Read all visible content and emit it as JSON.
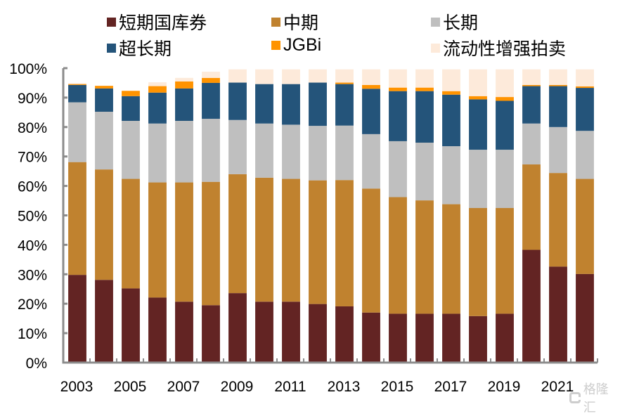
{
  "chart_data": {
    "type": "bar",
    "stacked": true,
    "title": "",
    "xlabel": "",
    "ylabel": "",
    "ylim": [
      0,
      100
    ],
    "y_ticks": [
      "0%",
      "10%",
      "20%",
      "30%",
      "40%",
      "50%",
      "60%",
      "70%",
      "80%",
      "90%",
      "100%"
    ],
    "x_tick_labels": [
      "2003",
      "2005",
      "2007",
      "2009",
      "2011",
      "2013",
      "2015",
      "2017",
      "2019",
      "2021"
    ],
    "categories": [
      "2003",
      "2004",
      "2005",
      "2006",
      "2007",
      "2008",
      "2009",
      "2010",
      "2011",
      "2012",
      "2013",
      "2014",
      "2015",
      "2016",
      "2017",
      "2018",
      "2019",
      "2020",
      "2021",
      "2022"
    ],
    "legend_position": "top",
    "grid": false,
    "series": [
      {
        "name": "短期国库券",
        "color": "#632423",
        "values": [
          29.8,
          28.1,
          25.2,
          22.1,
          20.7,
          19.5,
          23.6,
          20.7,
          20.7,
          19.9,
          19.1,
          17.0,
          16.6,
          16.6,
          16.6,
          15.8,
          16.6,
          38.3,
          32.6,
          30.1
        ]
      },
      {
        "name": "中期",
        "color": "#C0822F",
        "values": [
          38.3,
          37.5,
          37.2,
          39.1,
          40.5,
          41.9,
          40.4,
          42.1,
          41.7,
          42.0,
          42.9,
          42.1,
          39.6,
          38.5,
          37.2,
          36.7,
          35.9,
          29.0,
          31.8,
          32.3
        ]
      },
      {
        "name": "长期",
        "color": "#BFBFBF",
        "values": [
          20.3,
          19.6,
          19.7,
          20.0,
          20.9,
          21.4,
          18.4,
          18.4,
          18.4,
          18.5,
          18.5,
          18.5,
          19.0,
          19.6,
          19.7,
          19.8,
          19.8,
          13.9,
          15.6,
          16.3
        ]
      },
      {
        "name": "超长期",
        "color": "#24547A",
        "values": [
          5.9,
          7.9,
          8.4,
          10.5,
          11.0,
          12.2,
          12.7,
          13.4,
          13.8,
          14.7,
          14.1,
          15.4,
          17.0,
          17.5,
          17.5,
          17.1,
          16.6,
          12.7,
          13.9,
          14.6
        ]
      },
      {
        "name": "JGBi",
        "color": "#FF9300",
        "values": [
          0.3,
          0.9,
          1.8,
          2.2,
          2.4,
          1.7,
          0.0,
          0.0,
          0.0,
          0.0,
          0.5,
          1.3,
          1.2,
          1.2,
          1.2,
          1.1,
          1.3,
          0.4,
          0.4,
          0.5
        ]
      },
      {
        "name": "流动性增强拍卖",
        "color": "#FDEADA",
        "values": [
          0.3,
          0.0,
          0.0,
          1.3,
          1.2,
          2.1,
          4.5,
          5.0,
          5.0,
          4.5,
          4.5,
          5.3,
          6.2,
          6.2,
          7.4,
          9.1,
          9.4,
          5.3,
          5.3,
          5.8
        ]
      }
    ]
  },
  "legend": {
    "items": [
      {
        "label": "短期国库券",
        "color": "#632423"
      },
      {
        "label": "中期",
        "color": "#C0822F"
      },
      {
        "label": "长期",
        "color": "#BFBFBF"
      },
      {
        "label": "超长期",
        "color": "#24547A"
      },
      {
        "label": "JGBi",
        "color": "#FF9300"
      },
      {
        "label": "流动性增强拍卖",
        "color": "#FDEADA"
      }
    ]
  },
  "watermark": {
    "text": "格隆汇"
  },
  "axis_color": "#8C8C8C"
}
